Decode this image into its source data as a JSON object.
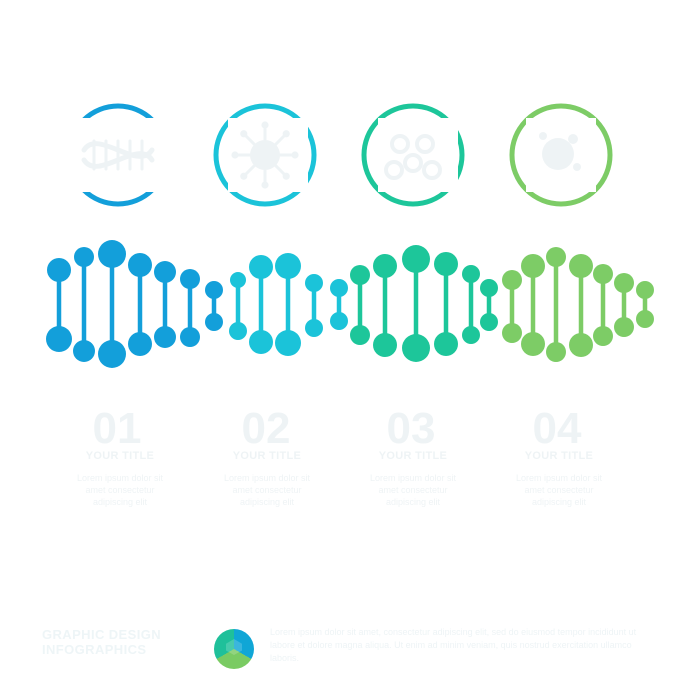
{
  "diagram": {
    "colors": {
      "blue": "#139fda",
      "cyan": "#1bc3d9",
      "teal": "#1dc69a",
      "green": "#7dcc66",
      "ghost": "#eef3f5"
    },
    "icons": [
      {
        "name": "dna-icon",
        "color": "#139fda"
      },
      {
        "name": "virus-icon",
        "color": "#1bc3d9"
      },
      {
        "name": "molecule-icon",
        "color": "#1dc69a"
      },
      {
        "name": "bacteria-icon",
        "color": "#7dcc66"
      }
    ],
    "steps": [
      {
        "number": "01",
        "title": "YOUR TITLE",
        "description": "Lorem ipsum dolor sit amet consectetur adipiscing elit"
      },
      {
        "number": "02",
        "title": "YOUR TITLE",
        "description": "Lorem ipsum dolor sit amet consectetur adipiscing elit"
      },
      {
        "number": "03",
        "title": "YOUR TITLE",
        "description": "Lorem ipsum dolor sit amet consectetur adipiscing elit"
      },
      {
        "number": "04",
        "title": "YOUR TITLE",
        "description": "Lorem ipsum dolor sit amet consectetur adipiscing elit"
      }
    ]
  },
  "footer": {
    "brand": "GRAPHIC DESIGN INFOGRAPHICS",
    "description": "Lorem ipsum dolor sit amet, consectetur adipiscing elit, sed do eiusmod tempor incididunt ut labore et dolore magna aliqua. Ut enim ad minim veniam, quis nostrud exercitation ullamco laboris."
  }
}
